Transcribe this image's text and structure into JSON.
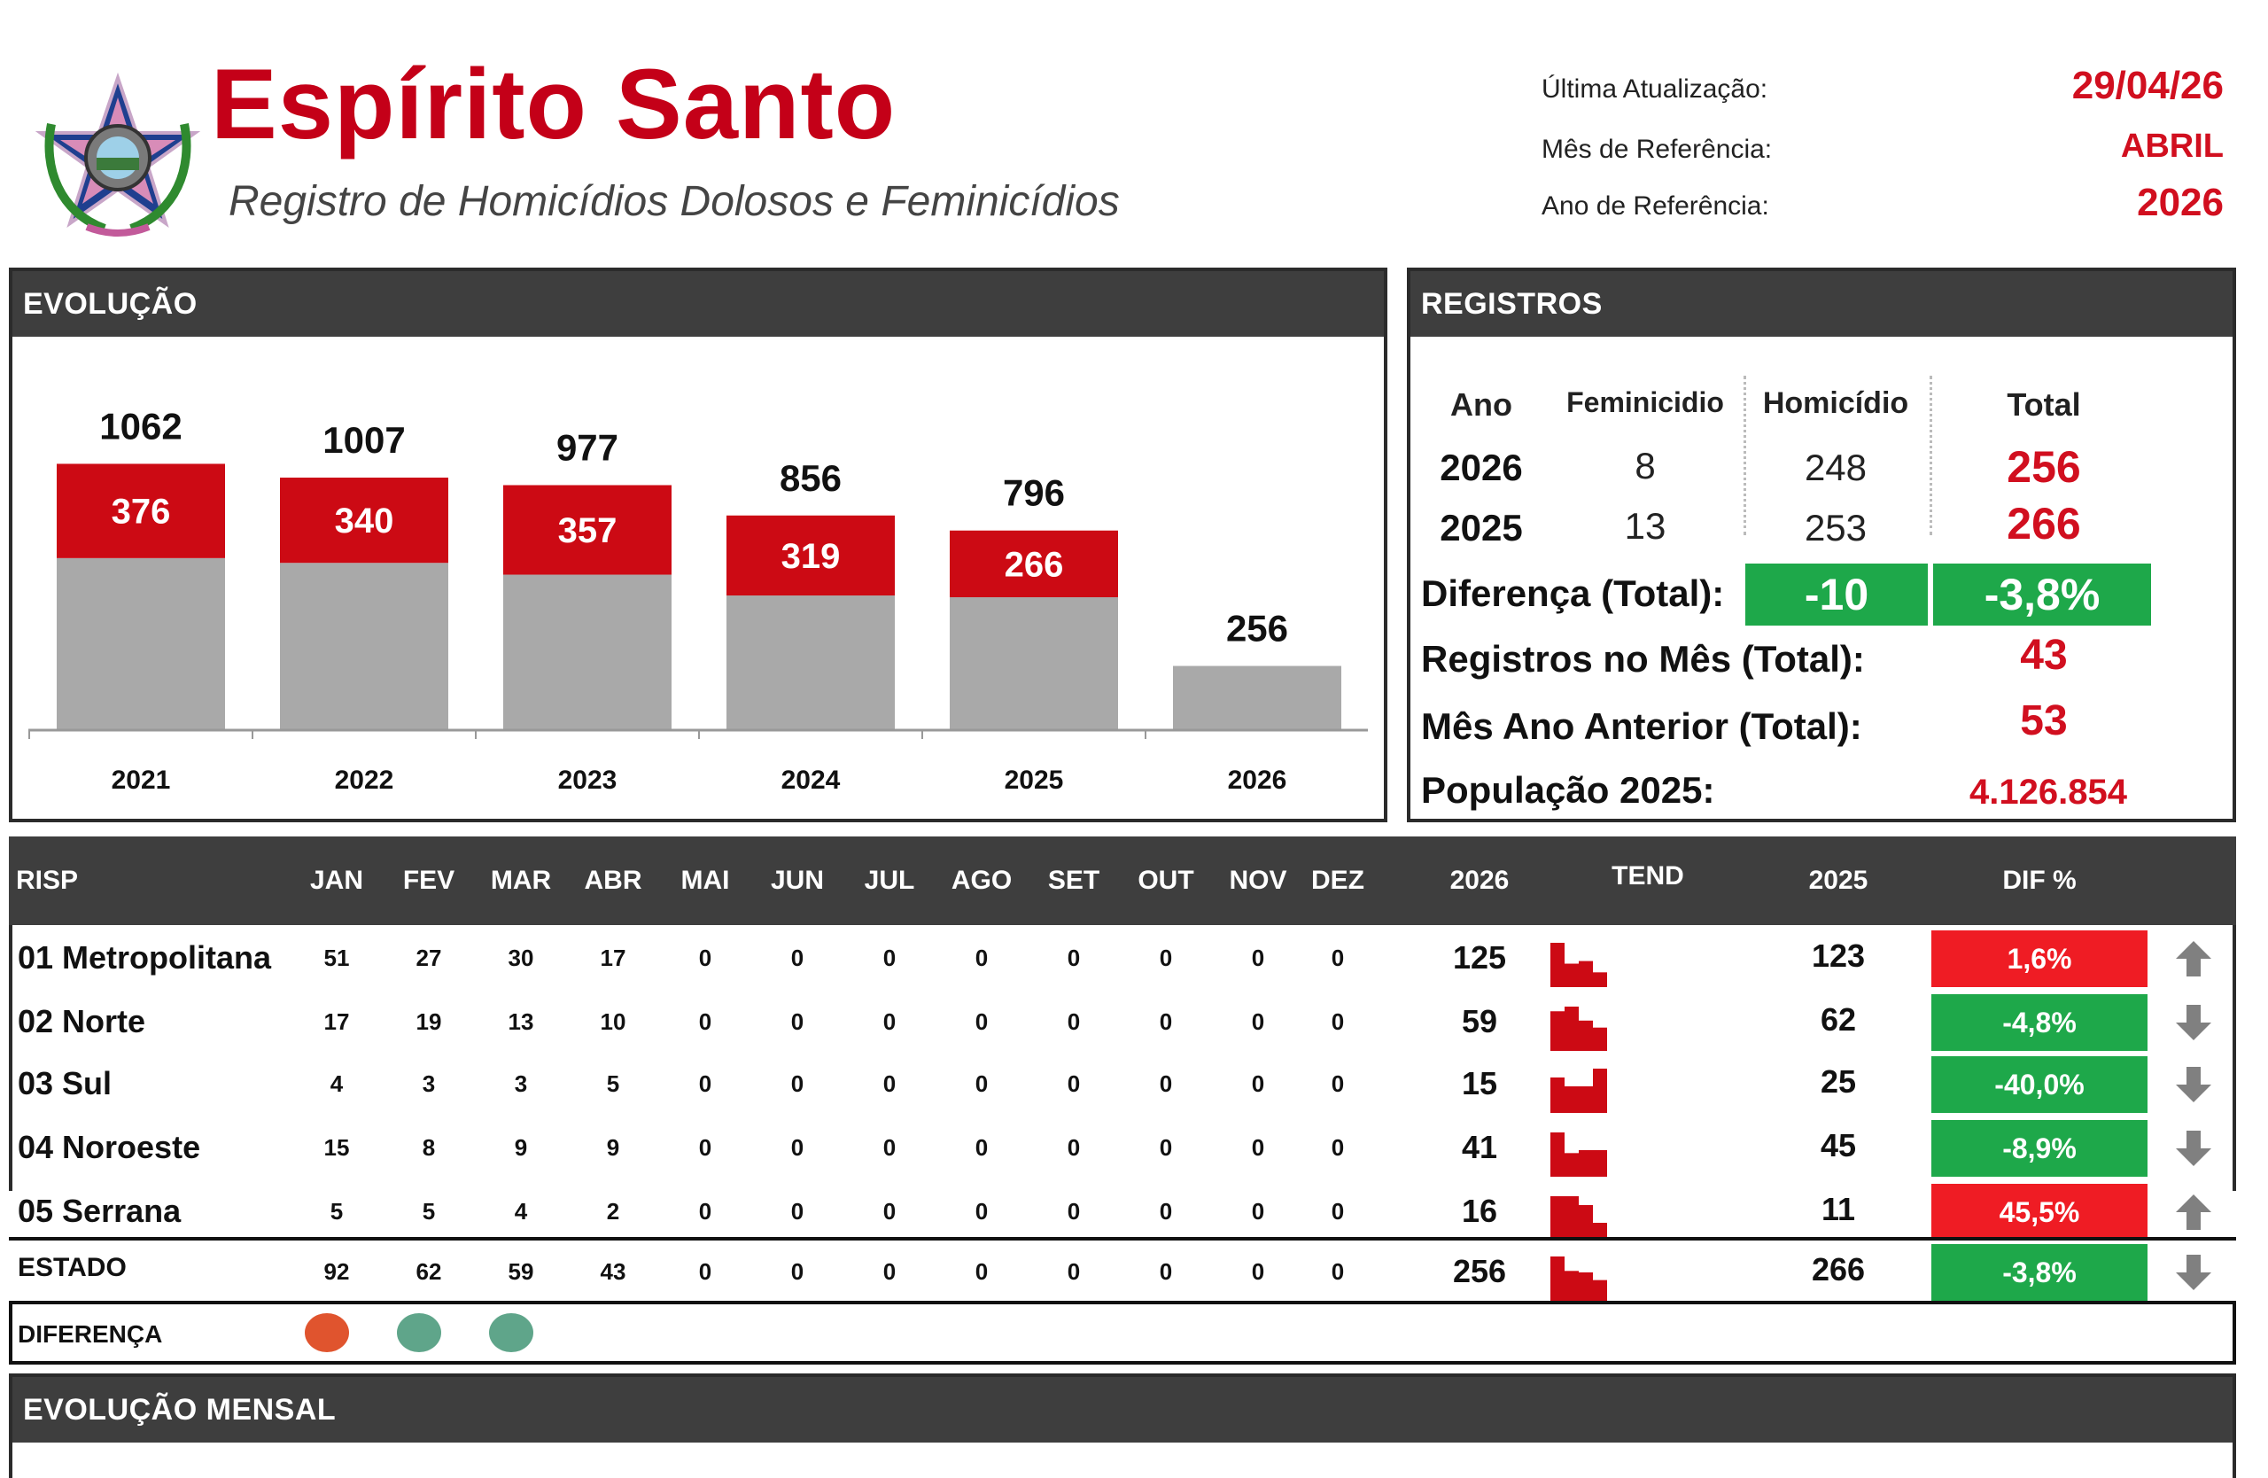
{
  "header": {
    "title": "Espírito Santo",
    "subtitle": "Registro de Homicídios Dolosos e Feminicídios",
    "meta": [
      {
        "label": "Última Atualização:",
        "value": "29/04/26"
      },
      {
        "label": "Mês de Referência:",
        "value": "ABRIL"
      },
      {
        "label": "Ano de Referência:",
        "value": "2026"
      }
    ]
  },
  "evolucao": {
    "title": "EVOLUÇÃO",
    "chart_data": {
      "type": "bar",
      "stacked": true,
      "categories": [
        "2021",
        "2022",
        "2023",
        "2024",
        "2025",
        "2026"
      ],
      "totals": [
        1062,
        1007,
        977,
        856,
        796,
        256
      ],
      "series": [
        {
          "values": [
            376,
            340,
            357,
            319,
            266,
            0
          ],
          "color": "#cc0a14"
        },
        {
          "values": [
            686,
            667,
            620,
            537,
            530,
            256
          ],
          "color": "#a9a9a9"
        }
      ],
      "segment_labels": [
        "376",
        "340",
        "357",
        "319",
        "266",
        ""
      ],
      "total_labels": [
        "1062",
        "1007",
        "977",
        "856",
        "796",
        "256"
      ]
    }
  },
  "registros": {
    "title": "REGISTROS",
    "headers": [
      "Ano",
      "Feminicidio",
      "Homicídio",
      "Total"
    ],
    "rows": [
      {
        "ano": "2026",
        "fem": "8",
        "hom": "248",
        "total": "256"
      },
      {
        "ano": "2025",
        "fem": "13",
        "hom": "253",
        "total": "266"
      }
    ],
    "diferenca_label": "Diferença (Total):",
    "diferenca_abs": "-10",
    "diferenca_pct": "-3,8%",
    "mes_label": "Registros no Mês (Total):",
    "mes_value": "43",
    "anterior_label": "Mês Ano Anterior (Total):",
    "anterior_value": "53",
    "populacao_label": "População 2025:",
    "populacao_value": "4.126.854"
  },
  "risp": {
    "headers": {
      "risp": "RISP",
      "months": [
        "JAN",
        "FEV",
        "MAR",
        "ABR",
        "MAI",
        "JUN",
        "JUL",
        "AGO",
        "SET",
        "OUT",
        "NOV",
        "DEZ"
      ],
      "y2026": "2026",
      "tend": "TEND",
      "y2025": "2025",
      "dif": "DIF %"
    },
    "rows": [
      {
        "name": "01 Metropolitana",
        "months": [
          "51",
          "27",
          "30",
          "17",
          "0",
          "0",
          "0",
          "0",
          "0",
          "0",
          "0",
          "0"
        ],
        "y2026": "125",
        "y2025": "123",
        "dif": "1,6%",
        "trend": "up"
      },
      {
        "name": "02 Norte",
        "months": [
          "17",
          "19",
          "13",
          "10",
          "0",
          "0",
          "0",
          "0",
          "0",
          "0",
          "0",
          "0"
        ],
        "y2026": "59",
        "y2025": "62",
        "dif": "-4,8%",
        "trend": "down"
      },
      {
        "name": "03 Sul",
        "months": [
          "4",
          "3",
          "3",
          "5",
          "0",
          "0",
          "0",
          "0",
          "0",
          "0",
          "0",
          "0"
        ],
        "y2026": "15",
        "y2025": "25",
        "dif": "-40,0%",
        "trend": "down"
      },
      {
        "name": "04 Noroeste",
        "months": [
          "15",
          "8",
          "9",
          "9",
          "0",
          "0",
          "0",
          "0",
          "0",
          "0",
          "0",
          "0"
        ],
        "y2026": "41",
        "y2025": "45",
        "dif": "-8,9%",
        "trend": "down"
      },
      {
        "name": "05 Serrana",
        "months": [
          "5",
          "5",
          "4",
          "2",
          "0",
          "0",
          "0",
          "0",
          "0",
          "0",
          "0",
          "0"
        ],
        "y2026": "16",
        "y2025": "11",
        "dif": "45,5%",
        "trend": "up"
      }
    ],
    "total": {
      "name": "ESTADO",
      "months": [
        "92",
        "62",
        "59",
        "43",
        "0",
        "0",
        "0",
        "0",
        "0",
        "0",
        "0",
        "0"
      ],
      "y2026": "256",
      "y2025": "266",
      "dif": "-3,8%",
      "trend": "down"
    },
    "diferenca": {
      "label": "DIFERENÇA",
      "dots": [
        {
          "color": "#e0542e"
        },
        {
          "color": "#5fa58a"
        },
        {
          "color": "#5fa58a"
        }
      ]
    }
  },
  "mensal": {
    "title": "EVOLUÇÃO MENSAL"
  },
  "colors": {
    "red": "#d10f1f",
    "green": "#1ea84a",
    "header_bg": "#3e3e3e"
  }
}
